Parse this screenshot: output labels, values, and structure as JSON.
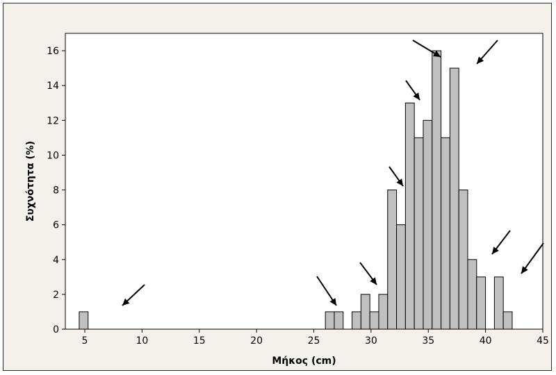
{
  "chart_data": {
    "type": "bar",
    "title": "",
    "xlabel": "Μήκος (cm)",
    "ylabel": "Συχνότητα (%)",
    "xlim": [
      3.3,
      45
    ],
    "ylim": [
      0,
      17
    ],
    "x_ticks": [
      "5",
      "10",
      "15",
      "20",
      "25",
      "30",
      "35",
      "40",
      "45"
    ],
    "y_ticks": [
      "0",
      "2",
      "4",
      "6",
      "8",
      "10",
      "12",
      "14",
      "16"
    ],
    "bin_width": 1,
    "bars": [
      {
        "x": 5,
        "value": 1
      },
      {
        "x": 26,
        "value": 1
      },
      {
        "x": 27,
        "value": 1
      },
      {
        "x": 29,
        "value": 1
      },
      {
        "x": 30,
        "value": 2
      },
      {
        "x": 31,
        "value": 1
      },
      {
        "x": 32,
        "value": 2
      },
      {
        "x": 33,
        "value": 8
      },
      {
        "x": 34,
        "value": 6
      },
      {
        "x": 35,
        "value": 13
      },
      {
        "x": 36,
        "value": 11
      },
      {
        "x": 37,
        "value": 12
      },
      {
        "x": 38,
        "value": 16
      },
      {
        "x": 39,
        "value": 11
      },
      {
        "x": 40,
        "value": 15
      },
      {
        "x": 41,
        "value": 8
      },
      {
        "x": 42,
        "value": 4
      },
      {
        "x": 43,
        "value": 3
      },
      {
        "x": 44,
        "value": 0
      },
      {
        "x": 45,
        "value": 3
      },
      {
        "x": 46,
        "value": 1
      }
    ],
    "annotations": {
      "type": "arrows",
      "count": 10
    },
    "colors": {
      "bar_fill": "#c0c0c0",
      "bar_edge": "#000000",
      "plot_background": "#ffffff",
      "outer_background": "#f4f1ec"
    },
    "grid": false,
    "legend": "none"
  }
}
